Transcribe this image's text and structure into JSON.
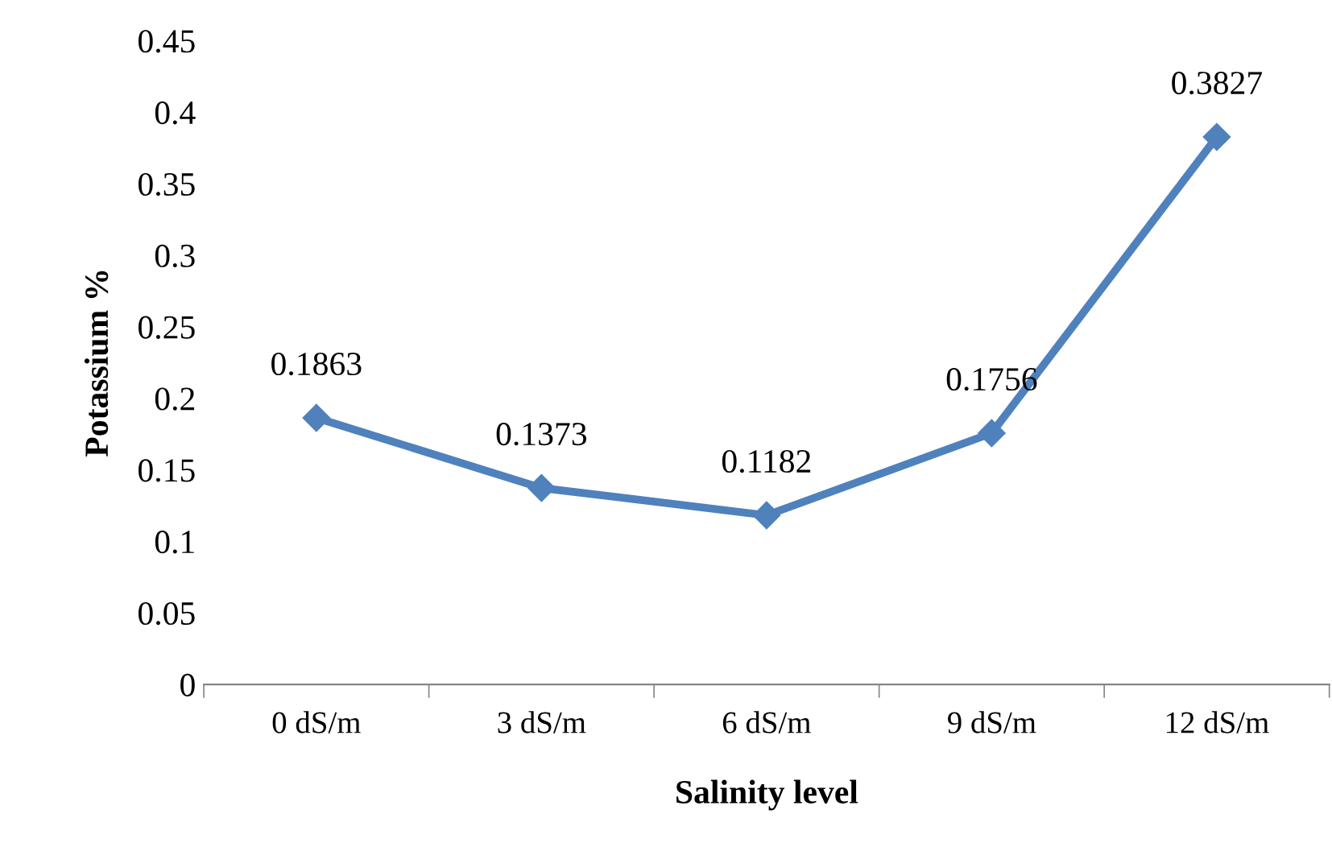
{
  "chart_data": {
    "type": "line",
    "xlabel": "Salinity level",
    "ylabel": "Potassium %",
    "categories": [
      "0 dS/m",
      "3 dS/m",
      "6 dS/m",
      "9 dS/m",
      "12 dS/m"
    ],
    "series": [
      {
        "color": "#4f81bd",
        "values": [
          0.1863,
          0.1373,
          0.1182,
          0.1756,
          0.3827
        ]
      }
    ],
    "ylim": [
      0,
      0.45
    ],
    "yticks": [
      0,
      0.05,
      0.1,
      0.15,
      0.2,
      0.25,
      0.3,
      0.35,
      0.4,
      0.45
    ],
    "marker": "diamond",
    "line_style": "solid",
    "data_labels": true,
    "grid": false,
    "legend": false
  }
}
